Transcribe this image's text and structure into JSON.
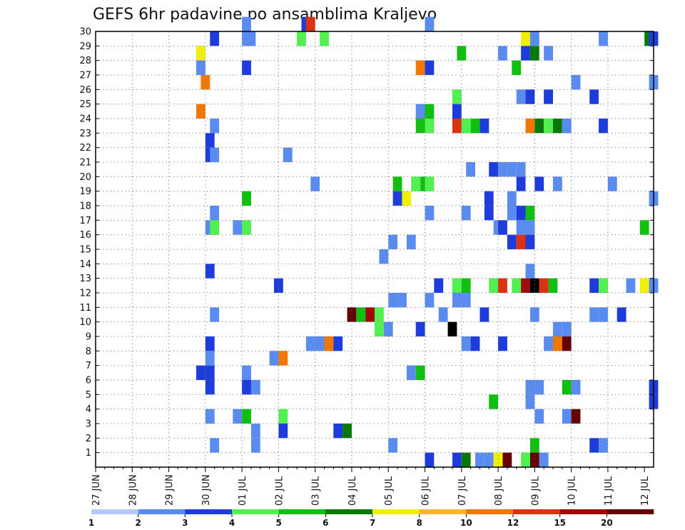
{
  "chart_data": {
    "type": "heatmap",
    "title": "GEFS 6hr padavine po ansamblima Kraljevo",
    "xlabel": "",
    "ylabel": "",
    "x_ticks": [
      "27 JUN",
      "28 JUN",
      "29 JUN",
      "30 JUN",
      "01 JUL",
      "02 JUL",
      "03 JUL",
      "04 JUL",
      "05 JUL",
      "06 JUL",
      "07 JUL",
      "08 JUL",
      "09 JUL",
      "10 JUL",
      "11 JUL",
      "12 JUL"
    ],
    "y_ticks": [
      "1",
      "2",
      "3",
      "4",
      "5",
      "6",
      "7",
      "8",
      "9",
      "10",
      "11",
      "12",
      "13",
      "14",
      "15",
      "16",
      "17",
      "18",
      "19",
      "20",
      "21",
      "22",
      "23",
      "24",
      "25",
      "26",
      "27",
      "28",
      "29",
      "30"
    ],
    "x_unit": "6-hour steps from 27 JUN 00 UTC",
    "xlim": [
      0,
      61
    ],
    "ylim": [
      0,
      30
    ],
    "grid": true,
    "colorbar": {
      "labels": [
        "1",
        "2",
        "3",
        "4",
        "5",
        "6",
        "7",
        "8",
        "10",
        "12",
        "15",
        "20"
      ],
      "colors": [
        "#b4c8fa",
        "#5a8cf0",
        "#1e3cdc",
        "#50f050",
        "#10c010",
        "#087808",
        "#f0f000",
        "#fab432",
        "#f07800",
        "#dc3214",
        "#a00a0a",
        "#640000"
      ]
    },
    "cells": [
      [
        12.5,
        29,
        2
      ],
      [
        16,
        30,
        1
      ],
      [
        16,
        29,
        1
      ],
      [
        16.5,
        29,
        1
      ],
      [
        22,
        29,
        3
      ],
      [
        22.5,
        30,
        2
      ],
      [
        23,
        30,
        9
      ],
      [
        24.5,
        29,
        3
      ],
      [
        36,
        30,
        1
      ],
      [
        46.5,
        29,
        6
      ],
      [
        46.5,
        28,
        2
      ],
      [
        47.5,
        29,
        1
      ],
      [
        47.5,
        28,
        5
      ],
      [
        55,
        29,
        1
      ],
      [
        60,
        29,
        5
      ],
      [
        60.5,
        29,
        2
      ],
      [
        11,
        28,
        6
      ],
      [
        39.5,
        28,
        4
      ],
      [
        44,
        28,
        1
      ],
      [
        49,
        28,
        1
      ],
      [
        11,
        27,
        1
      ],
      [
        16,
        27,
        2
      ],
      [
        35,
        27,
        8
      ],
      [
        36,
        27,
        2
      ],
      [
        45.5,
        27,
        4
      ],
      [
        11.5,
        26,
        8
      ],
      [
        52,
        26,
        1
      ],
      [
        60.5,
        26,
        1
      ],
      [
        39,
        25,
        3
      ],
      [
        46,
        25,
        1
      ],
      [
        47,
        25,
        2
      ],
      [
        49,
        25,
        2
      ],
      [
        54,
        25,
        2
      ],
      [
        11,
        24,
        8
      ],
      [
        35,
        24,
        1
      ],
      [
        36,
        24,
        4
      ],
      [
        39,
        24,
        2
      ],
      [
        12.5,
        23,
        1
      ],
      [
        35,
        23,
        4
      ],
      [
        36,
        23,
        3
      ],
      [
        39,
        23,
        9
      ],
      [
        40,
        23,
        3
      ],
      [
        41,
        23,
        4
      ],
      [
        42,
        23,
        2
      ],
      [
        47,
        23,
        8
      ],
      [
        48,
        23,
        5
      ],
      [
        49,
        23,
        3
      ],
      [
        50,
        23,
        5
      ],
      [
        51,
        23,
        1
      ],
      [
        55,
        23,
        2
      ],
      [
        12,
        22,
        2
      ],
      [
        12,
        21,
        2
      ],
      [
        12.5,
        21,
        1
      ],
      [
        20.5,
        21,
        1
      ],
      [
        40.5,
        20,
        1
      ],
      [
        43,
        20,
        2
      ],
      [
        44,
        20,
        1
      ],
      [
        45,
        20,
        1
      ],
      [
        46,
        20,
        1
      ],
      [
        23.5,
        19,
        1
      ],
      [
        32.5,
        19,
        4
      ],
      [
        34.5,
        19,
        3
      ],
      [
        35.5,
        19,
        4
      ],
      [
        36,
        19,
        3
      ],
      [
        46,
        19,
        2
      ],
      [
        48,
        19,
        2
      ],
      [
        50,
        19,
        1
      ],
      [
        56,
        19,
        1
      ],
      [
        16,
        18,
        4
      ],
      [
        32.5,
        18,
        2
      ],
      [
        33.5,
        18,
        6
      ],
      [
        42.5,
        18,
        2
      ],
      [
        45,
        18,
        1
      ],
      [
        60.5,
        18,
        1
      ],
      [
        12.5,
        17,
        1
      ],
      [
        36,
        17,
        1
      ],
      [
        40,
        17,
        1
      ],
      [
        42.5,
        17,
        2
      ],
      [
        45,
        17,
        1
      ],
      [
        46,
        17,
        2
      ],
      [
        47,
        17,
        4
      ],
      [
        12,
        16,
        1
      ],
      [
        12.5,
        16,
        3
      ],
      [
        15,
        16,
        1
      ],
      [
        16,
        16,
        3
      ],
      [
        43.5,
        16,
        1
      ],
      [
        44,
        16,
        2
      ],
      [
        46,
        16,
        1
      ],
      [
        47,
        16,
        1
      ],
      [
        59.5,
        16,
        4
      ],
      [
        32,
        15,
        1
      ],
      [
        34,
        15,
        1
      ],
      [
        45,
        15,
        2
      ],
      [
        46,
        15,
        9
      ],
      [
        47,
        15,
        2
      ],
      [
        31,
        14,
        1
      ],
      [
        12,
        13,
        2
      ],
      [
        47,
        13,
        1
      ],
      [
        19.5,
        12,
        2
      ],
      [
        37,
        12,
        2
      ],
      [
        39,
        12,
        3
      ],
      [
        40,
        12,
        4
      ],
      [
        43,
        12,
        3
      ],
      [
        44,
        12,
        9
      ],
      [
        45.5,
        12,
        3
      ],
      [
        46.5,
        12,
        10
      ],
      [
        47.5,
        12,
        12
      ],
      [
        48.5,
        12,
        9
      ],
      [
        49.5,
        12,
        4
      ],
      [
        54,
        12,
        2
      ],
      [
        55,
        12,
        3
      ],
      [
        58,
        12,
        1
      ],
      [
        59.5,
        12,
        6
      ],
      [
        60.5,
        12,
        1
      ],
      [
        32,
        11,
        1
      ],
      [
        33,
        11,
        1
      ],
      [
        36,
        11,
        1
      ],
      [
        39,
        11,
        1
      ],
      [
        40,
        11,
        1
      ],
      [
        12.5,
        10,
        1
      ],
      [
        27.5,
        10,
        11
      ],
      [
        28.5,
        10,
        4
      ],
      [
        29.5,
        10,
        10
      ],
      [
        30.5,
        10,
        3
      ],
      [
        37.5,
        10,
        1
      ],
      [
        42,
        10,
        2
      ],
      [
        47.5,
        10,
        1
      ],
      [
        54,
        10,
        1
      ],
      [
        55,
        10,
        1
      ],
      [
        57,
        10,
        2
      ],
      [
        30.5,
        9,
        3
      ],
      [
        31.5,
        9,
        1
      ],
      [
        35,
        9,
        2
      ],
      [
        38.5,
        9,
        12
      ],
      [
        50,
        9,
        1
      ],
      [
        51,
        9,
        1
      ],
      [
        12,
        8,
        2
      ],
      [
        23,
        8,
        1
      ],
      [
        24,
        8,
        1
      ],
      [
        25,
        8,
        8
      ],
      [
        26,
        8,
        2
      ],
      [
        40,
        8,
        1
      ],
      [
        41,
        8,
        2
      ],
      [
        44,
        8,
        2
      ],
      [
        49,
        8,
        1
      ],
      [
        50,
        8,
        8
      ],
      [
        51,
        8,
        11
      ],
      [
        12,
        7,
        1
      ],
      [
        19,
        7,
        1
      ],
      [
        20,
        7,
        8
      ],
      [
        11,
        6,
        2
      ],
      [
        12,
        6,
        2
      ],
      [
        16,
        6,
        1
      ],
      [
        34,
        6,
        1
      ],
      [
        35,
        6,
        4
      ],
      [
        12,
        5,
        2
      ],
      [
        16,
        5,
        2
      ],
      [
        17,
        5,
        1
      ],
      [
        47,
        5,
        1
      ],
      [
        48,
        5,
        1
      ],
      [
        51,
        5,
        4
      ],
      [
        52,
        5,
        1
      ],
      [
        60.5,
        5,
        2
      ],
      [
        43,
        4,
        4
      ],
      [
        47,
        4,
        1
      ],
      [
        60.5,
        4,
        2
      ],
      [
        12,
        3,
        1
      ],
      [
        15,
        3,
        1
      ],
      [
        16,
        3,
        4
      ],
      [
        20,
        3,
        3
      ],
      [
        48,
        3,
        1
      ],
      [
        51,
        3,
        1
      ],
      [
        52,
        3,
        11
      ],
      [
        17,
        2,
        1
      ],
      [
        20,
        2,
        2
      ],
      [
        26,
        2,
        2
      ],
      [
        27,
        2,
        5
      ],
      [
        12.5,
        1,
        1
      ],
      [
        17,
        1,
        1
      ],
      [
        32,
        1,
        1
      ],
      [
        54,
        1,
        2
      ],
      [
        55,
        1,
        1
      ],
      [
        47.5,
        1,
        4
      ],
      [
        36,
        0,
        2
      ],
      [
        39,
        0,
        2
      ],
      [
        40,
        0,
        5
      ],
      [
        41.5,
        0,
        1
      ],
      [
        42.5,
        0,
        1
      ],
      [
        43.5,
        0,
        6
      ],
      [
        44.5,
        0,
        11
      ],
      [
        46.5,
        0,
        3
      ],
      [
        47.5,
        0,
        11
      ],
      [
        48.5,
        0,
        1
      ]
    ]
  }
}
